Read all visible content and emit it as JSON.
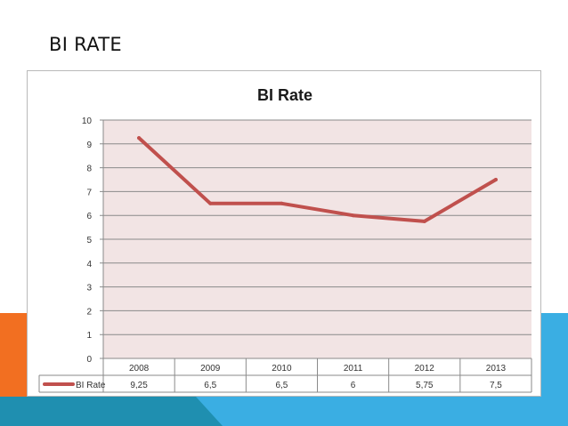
{
  "slide": {
    "title": "BI RATE"
  },
  "colors": {
    "line": "#c0504d",
    "plot_bg": "#f2e4e4",
    "accent_orange": "#f26f21",
    "accent_blue": "#3aaee3"
  },
  "chart_data": {
    "type": "line",
    "title": "BI Rate",
    "categories": [
      "2008",
      "2009",
      "2010",
      "2011",
      "2012",
      "2013"
    ],
    "series": [
      {
        "name": "BI Rate",
        "values": [
          9.25,
          6.5,
          6.5,
          6,
          5.75,
          7.5
        ],
        "labels": [
          "9,25",
          "6,5",
          "6,5",
          "6",
          "5,75",
          "7,5"
        ]
      }
    ],
    "ylim": [
      0,
      10
    ],
    "yticks": [
      "0",
      "1",
      "2",
      "3",
      "4",
      "5",
      "6",
      "7",
      "8",
      "9",
      "10"
    ],
    "grid": true,
    "legend": "data-table-left"
  }
}
